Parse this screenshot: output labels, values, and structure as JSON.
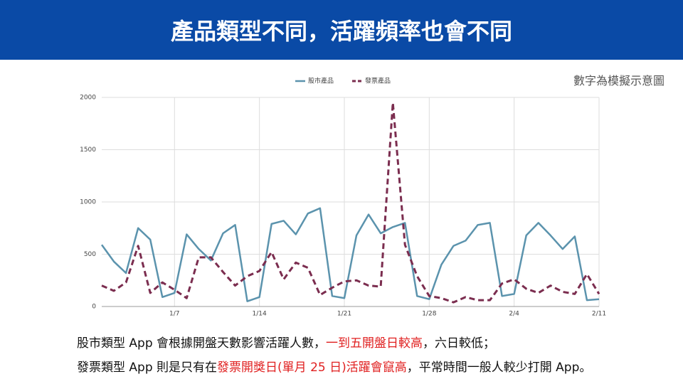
{
  "title": "產品類型不同，活躍頻率也會不同",
  "note": "數字為模擬示意圖",
  "body": [
    [
      {
        "text": "股市類型 App 會根據開盤天數影響活躍人數，",
        "emphasis": false
      },
      {
        "text": "一到五開盤日較高",
        "emphasis": true
      },
      {
        "text": "，六日較低；",
        "emphasis": false
      }
    ],
    [
      {
        "text": "發票類型 App 則是只有在",
        "emphasis": false
      },
      {
        "text": "發票開獎日(單月 25 日)活躍會竄高",
        "emphasis": true
      },
      {
        "text": "，平常時間一般人較少打開 App。",
        "emphasis": false
      }
    ]
  ],
  "chart_data": {
    "type": "line",
    "categories": [
      null,
      null,
      null,
      null,
      null,
      null,
      "1/7",
      null,
      null,
      null,
      null,
      null,
      null,
      "1/14",
      null,
      null,
      null,
      null,
      null,
      null,
      "1/21",
      null,
      null,
      null,
      null,
      null,
      null,
      "1/28",
      null,
      null,
      null,
      null,
      null,
      null,
      "2/4",
      null,
      null,
      null,
      null,
      null,
      null,
      "2/11"
    ],
    "series": [
      {
        "name": "股市產品",
        "color": "#5b93ad",
        "dashed": false,
        "values": [
          590,
          430,
          320,
          750,
          640,
          90,
          130,
          690,
          550,
          440,
          700,
          780,
          50,
          90,
          790,
          820,
          690,
          890,
          940,
          100,
          80,
          680,
          880,
          700,
          760,
          800,
          100,
          70,
          400,
          580,
          630,
          780,
          800,
          100,
          120,
          680,
          800,
          680,
          550,
          670,
          60,
          70
        ]
      },
      {
        "name": "發票產品",
        "color": "#7b2d4f",
        "dashed": true,
        "values": [
          200,
          150,
          230,
          580,
          130,
          230,
          160,
          80,
          470,
          470,
          330,
          200,
          290,
          340,
          520,
          260,
          420,
          370,
          110,
          180,
          240,
          250,
          200,
          190,
          1950,
          590,
          290,
          100,
          80,
          40,
          90,
          60,
          60,
          220,
          260,
          170,
          130,
          200,
          140,
          120,
          310,
          120
        ]
      }
    ],
    "ylim": [
      0,
      2000
    ],
    "yticks": [
      0,
      500,
      1000,
      1500,
      2000
    ],
    "grid": true,
    "legend": "top"
  }
}
